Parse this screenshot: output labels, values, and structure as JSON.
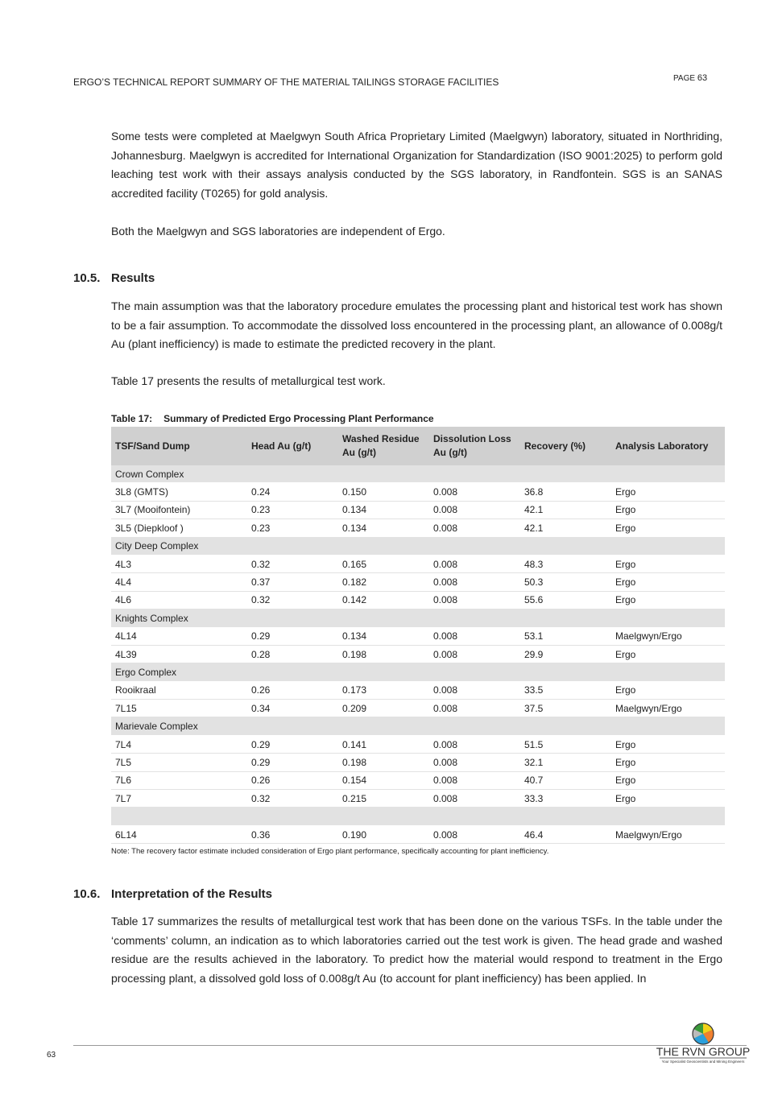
{
  "header": {
    "title": "ERGO’S TECHNICAL REPORT SUMMARY OF THE MATERIAL TAILINGS STORAGE FACILITIES",
    "page_label": "PAGE",
    "page_number": "63"
  },
  "paragraphs": {
    "p1": "Some tests were completed at Maelgwyn South Africa Proprietary Limited (Maelgwyn) laboratory, situated in Northriding, Johannesburg. Maelgwyn is accredited for International Organization for Standardization (ISO 9001:2025) to perform gold leaching test work with their assays analysis conducted by the SGS laboratory, in Randfontein. SGS is an SANAS accredited facility (T0265) for gold analysis.",
    "p2": "Both the Maelgwyn and SGS laboratories are independent of Ergo.",
    "p3": "The main assumption was that the laboratory procedure emulates the processing plant and historical test work has shown to be a fair assumption. To accommodate the dissolved loss encountered in the processing plant, an allowance of 0.008g/t Au (plant inefficiency) is made to estimate the predicted recovery in the plant.",
    "p4": "Table 17 presents the results of metallurgical test work.",
    "p5": "Table 17 summarizes the results of metallurgical test work that has been done on the various TSFs. In the table under the ‘comments’ column, an indication as to which laboratories carried out the test work is given. The head grade and washed residue are the results achieved in the laboratory. To predict how the material would respond to treatment in the Ergo processing plant, a dissolved gold loss of 0.008g/t Au (to account for plant inefficiency) has been applied. In"
  },
  "sections": {
    "s1": {
      "number": "10.5.",
      "title": "Results"
    },
    "s2": {
      "number": "10.6.",
      "title": "Interpretation of the Results"
    }
  },
  "table": {
    "caption_label": "Table 17:",
    "caption": "Summary of Predicted Ergo Processing Plant Performance",
    "headers": [
      "TSF/Sand Dump",
      "Head Au (g/t)",
      "Washed Residue Au (g/t)",
      "Dissolution Loss Au (g/t)",
      "Recovery (%)",
      "Analysis Laboratory"
    ],
    "rows": [
      {
        "group": "Crown Complex"
      },
      {
        "cells": [
          "3L8 (GMTS)",
          "0.24",
          "0.150",
          "0.008",
          "36.8",
          "Ergo"
        ]
      },
      {
        "cells": [
          "3L7 (Mooifontein)",
          "0.23",
          "0.134",
          "0.008",
          "42.1",
          "Ergo"
        ]
      },
      {
        "cells": [
          "3L5 (Diepkloof )",
          "0.23",
          "0.134",
          "0.008",
          "42.1",
          "Ergo"
        ]
      },
      {
        "group": "City Deep Complex"
      },
      {
        "cells": [
          "4L3",
          "0.32",
          "0.165",
          "0.008",
          "48.3",
          "Ergo"
        ]
      },
      {
        "cells": [
          "4L4",
          "0.37",
          "0.182",
          "0.008",
          "50.3",
          "Ergo"
        ]
      },
      {
        "cells": [
          "4L6",
          "0.32",
          "0.142",
          "0.008",
          "55.6",
          "Ergo"
        ]
      },
      {
        "group": "Knights Complex"
      },
      {
        "cells": [
          "4L14",
          "0.29",
          "0.134",
          "0.008",
          "53.1",
          "Maelgwyn/Ergo"
        ]
      },
      {
        "cells": [
          "4L39",
          "0.28",
          "0.198",
          "0.008",
          "29.9",
          "Ergo"
        ]
      },
      {
        "group": "Ergo Complex"
      },
      {
        "cells": [
          "Rooikraal",
          "0.26",
          "0.173",
          "0.008",
          "33.5",
          "Ergo"
        ]
      },
      {
        "cells": [
          "7L15",
          "0.34",
          "0.209",
          "0.008",
          "37.5",
          "Maelgwyn/Ergo"
        ]
      },
      {
        "group": "Marievale Complex"
      },
      {
        "cells": [
          "7L4",
          "0.29",
          "0.141",
          "0.008",
          "51.5",
          "Ergo"
        ]
      },
      {
        "cells": [
          "7L5",
          "0.29",
          "0.198",
          "0.008",
          "32.1",
          "Ergo"
        ]
      },
      {
        "cells": [
          "7L6",
          "0.26",
          "0.154",
          "0.008",
          "40.7",
          "Ergo"
        ]
      },
      {
        "cells": [
          "7L7",
          "0.32",
          "0.215",
          "0.008",
          "33.3",
          "Ergo"
        ]
      },
      {
        "group": ""
      },
      {
        "cells": [
          "6L14",
          "0.36",
          "0.190",
          "0.008",
          "46.4",
          "Maelgwyn/Ergo"
        ]
      }
    ],
    "note": "Note: The recovery factor estimate included consideration of Ergo plant performance, specifically accounting for plant inefficiency."
  },
  "footer": {
    "page_number": "63",
    "logo_text": "THE RVN GROUP",
    "logo_tagline": "Your Specialist Geoscientists and Mining Engineers"
  }
}
